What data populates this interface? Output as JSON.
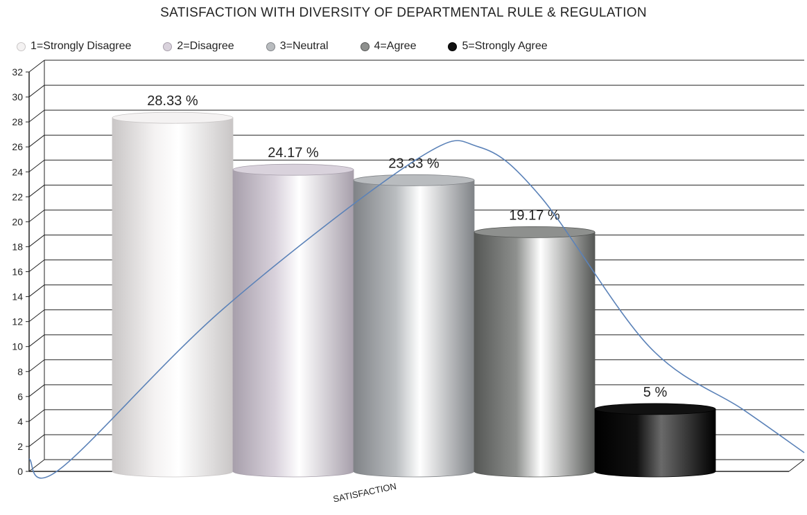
{
  "chart_data": {
    "type": "bar",
    "title": "SATISFACTION WITH DIVERSITY OF DEPARTMENTAL RULE & REGULATION",
    "xlabel": "SATISFACTION",
    "ylabel": "",
    "categories": [
      "SATISFACTION"
    ],
    "ylim": [
      0,
      32
    ],
    "yticks": [
      0,
      2,
      4,
      6,
      8,
      10,
      12,
      14,
      16,
      18,
      20,
      22,
      24,
      26,
      28,
      30,
      32
    ],
    "grid": true,
    "legend_position": "top",
    "series": [
      {
        "name": "1=Strongly Disagree",
        "values": [
          28.33
        ],
        "label": "28.33 %",
        "color": "#f4f2f2",
        "dark": "#c9c6c6"
      },
      {
        "name": "2=Disagree",
        "values": [
          24.17
        ],
        "label": "24.17 %",
        "color": "#d9d2dc",
        "dark": "#a79fab"
      },
      {
        "name": "3=Neutral",
        "values": [
          23.33
        ],
        "label": "23.33 %",
        "color": "#b9bcbf",
        "dark": "#808387"
      },
      {
        "name": "4=Agree",
        "values": [
          19.17
        ],
        "label": "19.17 %",
        "color": "#8e908e",
        "dark": "#555755"
      },
      {
        "name": "5=Strongly Agree",
        "values": [
          5
        ],
        "label": "5 %",
        "color": "#111111",
        "dark": "#000000"
      }
    ],
    "trend_line": {
      "color": "#5b82b8",
      "points": [
        [
          0.0,
          1.0
        ],
        [
          0.04,
          0.2
        ],
        [
          0.25,
          13
        ],
        [
          0.5,
          25
        ],
        [
          0.58,
          26
        ],
        [
          0.66,
          22
        ],
        [
          0.8,
          10
        ],
        [
          0.92,
          5
        ],
        [
          1.0,
          1.5
        ]
      ]
    }
  }
}
